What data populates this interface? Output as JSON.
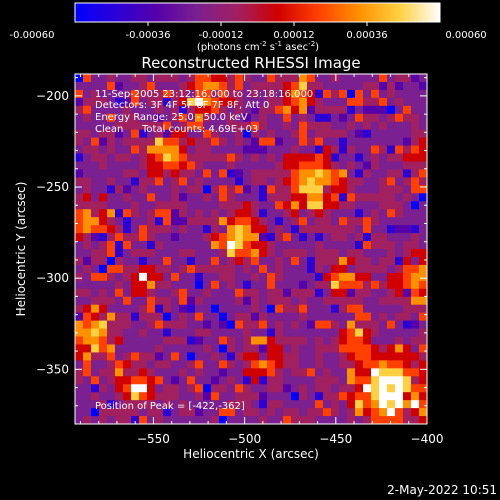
{
  "colorbar": {
    "ticks": [
      "-0.00060",
      "-0.00036",
      "-0.00012",
      "0.00012",
      "0.00036",
      "0.00060"
    ],
    "unit_prefix": "(photons cm",
    "unit_exp1": "-2",
    "unit_mid": " s",
    "unit_exp2": "-1",
    "unit_mid2": " asec",
    "unit_exp3": "-2",
    "unit_suffix": ")",
    "colors": [
      "#0000ff",
      "#2a00d6",
      "#5500aa",
      "#7a2090",
      "#a02060",
      "#d00000",
      "#ff4000",
      "#ff9000",
      "#ffd040",
      "#ffffff"
    ]
  },
  "chart_data": {
    "type": "heatmap",
    "title": "Reconstructed RHESSI Image",
    "xlabel": "Heliocentric X (arcsec)",
    "ylabel": "Heliocentric Y (arcsec)",
    "xlim": [
      -593,
      -400
    ],
    "ylim": [
      -380,
      -188
    ],
    "x_ticks": [
      -550,
      -500,
      -450,
      -400
    ],
    "x_tick_labels": [
      "-550",
      "-500",
      "-450",
      "-400"
    ],
    "y_ticks": [
      -200,
      -250,
      -300,
      -350
    ],
    "y_tick_labels": [
      "-200",
      "-250",
      "-300",
      "-350"
    ],
    "value_range": [
      -0.0006,
      0.0006
    ],
    "annotations": {
      "time_range": "11-Sep-2005 23:12:16.000 to 23:18:16.000",
      "detectors": "Detectors: 3F 4F 5F 6F 7F 8F, Att 0",
      "energy": "Energy Range: 25.0 - 50.0 keV",
      "algorithm": "Clean",
      "counts": "Total counts: 4.69E+03",
      "peak": "Position of Peak = [-422,-362]"
    },
    "peak": [
      -422,
      -362
    ]
  },
  "footer": {
    "timestamp": "2-May-2022 10:51"
  }
}
